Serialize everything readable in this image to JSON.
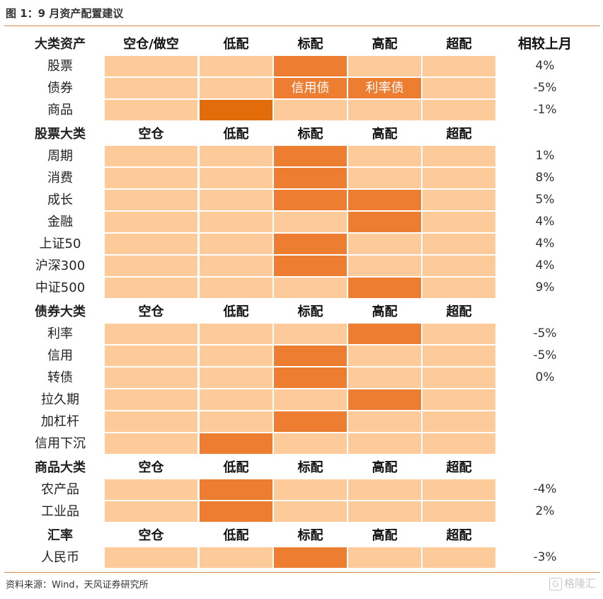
{
  "title": "图 1：9 月资产配置建议",
  "source": "资料来源：Wind，天风证券研究所",
  "watermark": "格隆汇",
  "change_header": "相较上月",
  "sections": [
    {
      "header": "大类资产",
      "columns": [
        "空仓/做空",
        "低配",
        "标配",
        "高配",
        "超配"
      ],
      "rows": [
        {
          "name": "股票",
          "levels": [
            0,
            0,
            1,
            0,
            0
          ],
          "cell_text": [
            "",
            "",
            "",
            "",
            ""
          ],
          "change": "4%"
        },
        {
          "name": "债券",
          "levels": [
            0,
            0,
            1,
            1,
            0
          ],
          "cell_text": [
            "",
            "",
            "信用债",
            "利率债",
            ""
          ],
          "change": "-5%"
        },
        {
          "name": "商品",
          "levels": [
            0,
            2,
            0,
            0,
            0
          ],
          "cell_text": [
            "",
            "",
            "",
            "",
            ""
          ],
          "change": "-1%"
        }
      ]
    },
    {
      "header": "股票大类",
      "columns": [
        "空仓",
        "低配",
        "标配",
        "高配",
        "超配"
      ],
      "rows": [
        {
          "name": "周期",
          "levels": [
            0,
            0,
            1,
            0,
            0
          ],
          "cell_text": [
            "",
            "",
            "",
            "",
            ""
          ],
          "change": "1%"
        },
        {
          "name": "消费",
          "levels": [
            0,
            0,
            1,
            0,
            0
          ],
          "cell_text": [
            "",
            "",
            "",
            "",
            ""
          ],
          "change": "8%"
        },
        {
          "name": "成长",
          "levels": [
            0,
            0,
            1,
            1,
            0
          ],
          "cell_text": [
            "",
            "",
            "",
            "",
            ""
          ],
          "change": "5%"
        },
        {
          "name": "金融",
          "levels": [
            0,
            0,
            0,
            1,
            0
          ],
          "cell_text": [
            "",
            "",
            "",
            "",
            ""
          ],
          "change": "4%"
        },
        {
          "name": "上证50",
          "levels": [
            0,
            0,
            1,
            0,
            0
          ],
          "cell_text": [
            "",
            "",
            "",
            "",
            ""
          ],
          "change": "4%"
        },
        {
          "name": "沪深300",
          "levels": [
            0,
            0,
            1,
            0,
            0
          ],
          "cell_text": [
            "",
            "",
            "",
            "",
            ""
          ],
          "change": "4%"
        },
        {
          "name": "中证500",
          "levels": [
            0,
            0,
            0,
            1,
            0
          ],
          "cell_text": [
            "",
            "",
            "",
            "",
            ""
          ],
          "change": "9%"
        }
      ]
    },
    {
      "header": "债券大类",
      "columns": [
        "空仓",
        "低配",
        "标配",
        "高配",
        "超配"
      ],
      "rows": [
        {
          "name": "利率",
          "levels": [
            0,
            0,
            0,
            1,
            0
          ],
          "cell_text": [
            "",
            "",
            "",
            "",
            ""
          ],
          "change": "-5%"
        },
        {
          "name": "信用",
          "levels": [
            0,
            0,
            1,
            0,
            0
          ],
          "cell_text": [
            "",
            "",
            "",
            "",
            ""
          ],
          "change": "-5%"
        },
        {
          "name": "转债",
          "levels": [
            0,
            0,
            1,
            0,
            0
          ],
          "cell_text": [
            "",
            "",
            "",
            "",
            ""
          ],
          "change": "0%"
        },
        {
          "name": "拉久期",
          "levels": [
            0,
            0,
            0,
            1,
            0
          ],
          "cell_text": [
            "",
            "",
            "",
            "",
            ""
          ],
          "change": ""
        },
        {
          "name": "加杠杆",
          "levels": [
            0,
            0,
            1,
            0,
            0
          ],
          "cell_text": [
            "",
            "",
            "",
            "",
            ""
          ],
          "change": ""
        },
        {
          "name": "信用下沉",
          "levels": [
            0,
            1,
            0,
            0,
            0
          ],
          "cell_text": [
            "",
            "",
            "",
            "",
            ""
          ],
          "change": ""
        }
      ]
    },
    {
      "header": "商品大类",
      "columns": [
        "空仓",
        "低配",
        "标配",
        "高配",
        "超配"
      ],
      "rows": [
        {
          "name": "农产品",
          "levels": [
            0,
            1,
            0,
            0,
            0
          ],
          "cell_text": [
            "",
            "",
            "",
            "",
            ""
          ],
          "change": "-4%"
        },
        {
          "name": "工业品",
          "levels": [
            0,
            1,
            0,
            0,
            0
          ],
          "cell_text": [
            "",
            "",
            "",
            "",
            ""
          ],
          "change": "2%"
        }
      ]
    },
    {
      "header": "汇率",
      "columns": [
        "空仓",
        "低配",
        "标配",
        "高配",
        "超配"
      ],
      "rows": [
        {
          "name": "人民币",
          "levels": [
            0,
            0,
            1,
            0,
            0
          ],
          "cell_text": [
            "",
            "",
            "",
            "",
            ""
          ],
          "change": "-3%"
        }
      ]
    }
  ],
  "colors": {
    "base": "#fccb99",
    "on": "#ed7d31",
    "dark": "#e36c0a"
  }
}
